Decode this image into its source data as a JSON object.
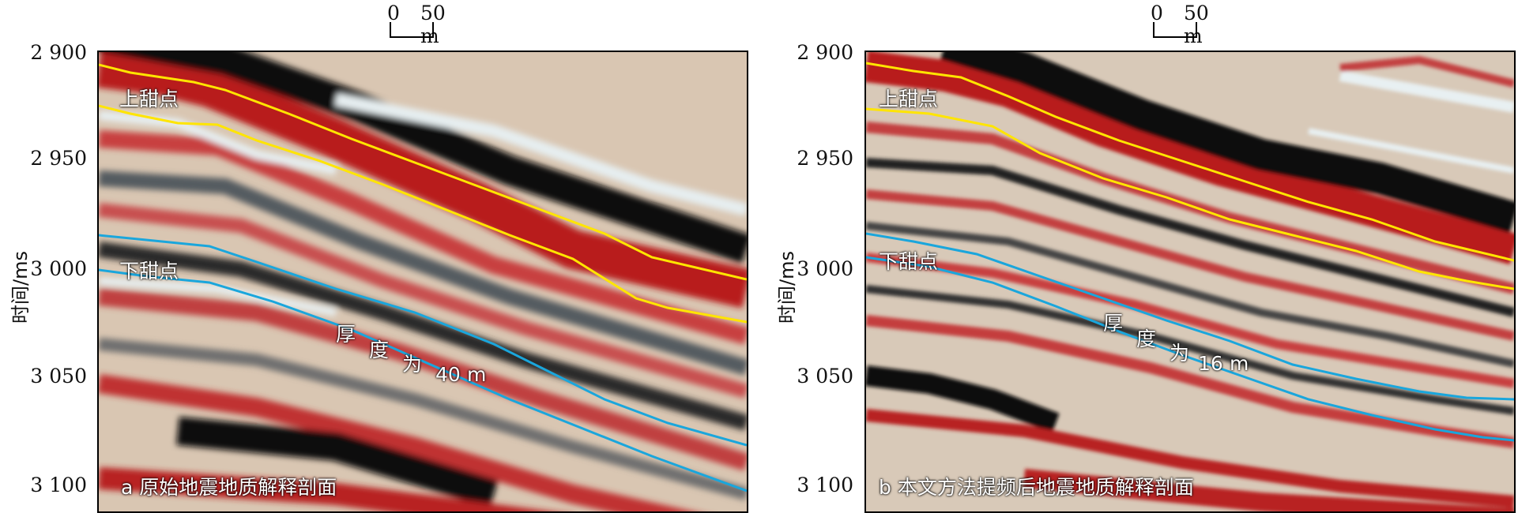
{
  "y_axis": {
    "label": "时间/ms",
    "ticks": [
      "2 900",
      "2 950",
      "3 000",
      "3 050",
      "3 100"
    ]
  },
  "scale_bar": {
    "start": "0",
    "end": "50 m"
  },
  "panels": [
    {
      "upper_label": "上甜点",
      "lower_label": "下甜点",
      "thickness_chars": [
        "厚",
        "度",
        "为",
        "40",
        "m"
      ],
      "caption": "a 原始地震地质解释剖面"
    },
    {
      "upper_label": "上甜点",
      "lower_label": "下甜点",
      "thickness_chars": [
        "厚",
        "度",
        "为",
        "16",
        "m"
      ],
      "caption": "b 本文方法提频后地震地质解释剖面"
    }
  ],
  "colors": {
    "upper_horizon": "#ffe500",
    "lower_horizon": "#1aa6dc",
    "positive_amplitude": "#b81c1c",
    "negative_amplitude": "#0a0a0a"
  }
}
